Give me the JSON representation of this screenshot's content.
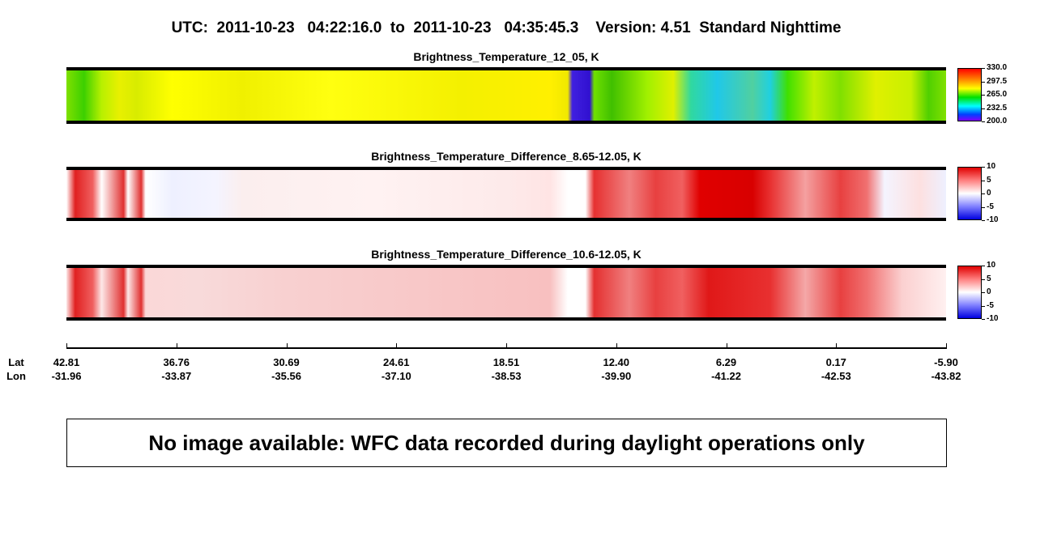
{
  "title": "UTC:  2011-10-23   04:22:16.0  to  2011-10-23   04:35:45.3    Version: 4.51  Standard Nighttime",
  "panels": [
    {
      "title": "Brightness_Temperature_12_05, K",
      "colorbar": [
        {
          "value": 330,
          "label": "330.0"
        },
        {
          "value": 297.5,
          "label": "297.5"
        },
        {
          "value": 265,
          "label": "265.0"
        },
        {
          "value": 232.5,
          "label": "232.5"
        },
        {
          "value": 200,
          "label": "200.0"
        }
      ]
    },
    {
      "title": "Brightness_Temperature_Difference_8.65-12.05, K",
      "colorbar": [
        10,
        5,
        0,
        -5,
        -10
      ]
    },
    {
      "title": "Brightness_Temperature_Difference_10.6-12.05, K",
      "colorbar": [
        10,
        5,
        0,
        -5,
        -10
      ]
    }
  ],
  "axis": {
    "lat_label": "Lat",
    "lon_label": "Lon",
    "lat": [
      "42.81",
      "36.76",
      "30.69",
      "24.61",
      "18.51",
      "12.40",
      "6.29",
      "0.17",
      "-5.90"
    ],
    "lon": [
      "-31.96",
      "-33.87",
      "-35.56",
      "-37.10",
      "-38.53",
      "-39.90",
      "-41.22",
      "-42.53",
      "-43.82"
    ]
  },
  "message": "No image available: WFC data recorded during daylight operations only"
}
